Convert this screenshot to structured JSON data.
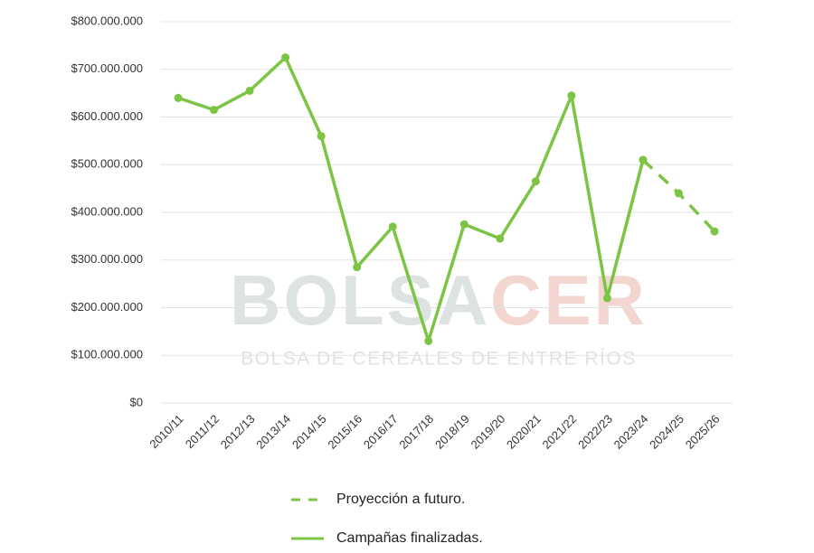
{
  "chart_data": {
    "type": "line",
    "categories": [
      "2010/11",
      "2011/12",
      "2012/13",
      "2013/14",
      "2014/15",
      "2015/16",
      "2016/17",
      "2017/18",
      "2018/19",
      "2019/20",
      "2020/21",
      "2021/22",
      "2022/23",
      "2023/24",
      "2024/25",
      "2025/26"
    ],
    "series": [
      {
        "name": "Proyección a futuro.",
        "color": "#7cc444",
        "dashed": true,
        "values": [
          null,
          null,
          null,
          null,
          null,
          null,
          null,
          null,
          null,
          null,
          null,
          null,
          null,
          510000000,
          440000000,
          360000000
        ]
      },
      {
        "name": "Campañas finalizadas.",
        "color": "#7cc444",
        "dashed": false,
        "values": [
          640000000,
          615000000,
          655000000,
          725000000,
          560000000,
          285000000,
          370000000,
          130000000,
          375000000,
          345000000,
          465000000,
          645000000,
          220000000,
          510000000,
          null,
          null
        ]
      }
    ],
    "ylim": [
      0,
      800000000
    ],
    "yticks": [
      {
        "value": 0,
        "label": "$0"
      },
      {
        "value": 100000000,
        "label": "$100.000.000"
      },
      {
        "value": 200000000,
        "label": "$200.000.000"
      },
      {
        "value": 300000000,
        "label": "$300.000.000"
      },
      {
        "value": 400000000,
        "label": "$400.000.000"
      },
      {
        "value": 500000000,
        "label": "$500.000.000"
      },
      {
        "value": 600000000,
        "label": "$600.000.000"
      },
      {
        "value": 700000000,
        "label": "$700.000.000"
      },
      {
        "value": 800000000,
        "label": "$800.000.000"
      }
    ],
    "grid": true,
    "watermark": {
      "parts": [
        "BOLSA",
        "CER"
      ],
      "subtitle": "BOLSA DE CEREALES DE ENTRE RÍOS"
    }
  }
}
